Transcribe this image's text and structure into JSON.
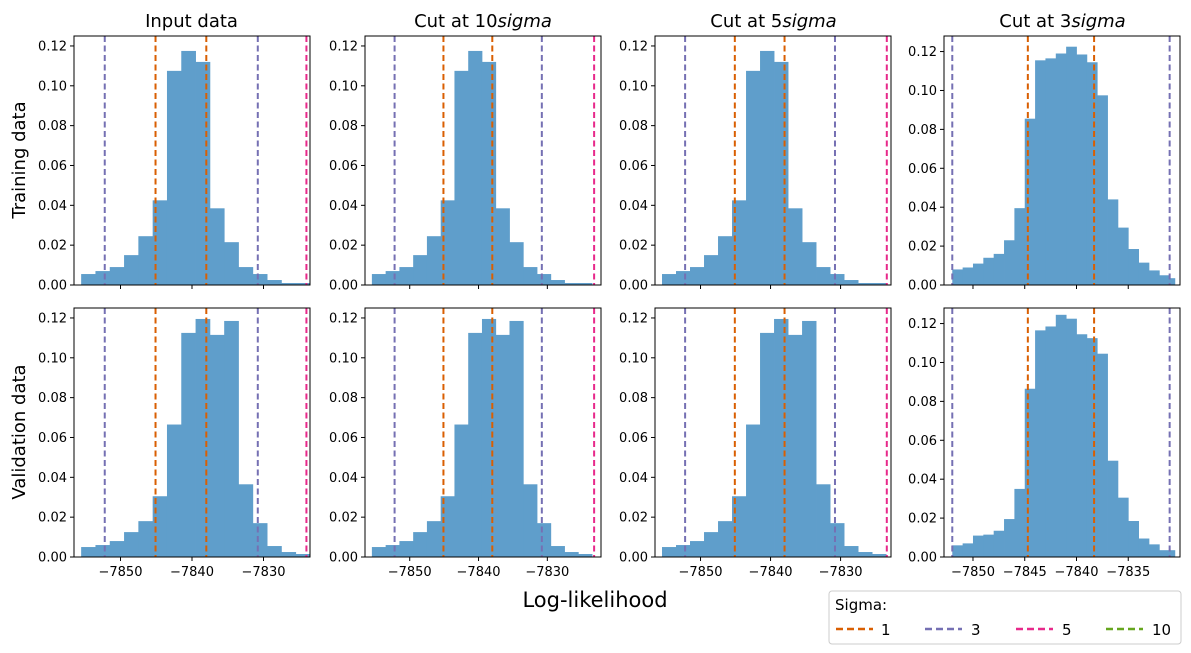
{
  "figure": {
    "xlabel": "Log-likelihood",
    "row_labels": [
      "Training data",
      "Validation data"
    ],
    "column_titles": [
      {
        "prefix": "Input data",
        "italic": ""
      },
      {
        "prefix": "Cut at 10",
        "italic": "sigma"
      },
      {
        "prefix": "Cut at 5",
        "italic": "sigma"
      },
      {
        "prefix": "Cut at 3",
        "italic": "sigma"
      }
    ],
    "legend": {
      "title": "Sigma:",
      "placement": "bottom-right",
      "entries": [
        {
          "label": "1",
          "color": "#d95f02"
        },
        {
          "label": "3",
          "color": "#7570b3"
        },
        {
          "label": "5",
          "color": "#e7298a"
        },
        {
          "label": "10",
          "color": "#66a61e"
        }
      ]
    },
    "bar_color": "#5f9ecb"
  },
  "chart_data": [
    {
      "type": "bar",
      "title": "Input data",
      "row": "Training data",
      "ylabel": "Training data",
      "xlim": [
        -7856.5,
        -7823.5
      ],
      "ylim": [
        0,
        0.125
      ],
      "xticks": [
        -7850,
        -7840,
        -7830
      ],
      "xtick_labels": [
        "",
        "",
        ""
      ],
      "yticks": [
        0,
        0.02,
        0.04,
        0.06,
        0.08,
        0.1,
        0.12
      ],
      "ytick_labels": [
        "0.00",
        "0.02",
        "0.04",
        "0.06",
        "0.08",
        "0.10",
        "0.12"
      ],
      "bin_edges": [
        -7855.5,
        -7853.5,
        -7851.5,
        -7849.5,
        -7847.5,
        -7845.5,
        -7843.5,
        -7841.5,
        -7839.5,
        -7837.5,
        -7835.5,
        -7833.5,
        -7831.5,
        -7829.5,
        -7827.5,
        -7825.5,
        -7823.5
      ],
      "values": [
        0.0055,
        0.007,
        0.009,
        0.015,
        0.0245,
        0.0425,
        0.1075,
        0.1175,
        0.112,
        0.0385,
        0.0215,
        0.009,
        0.0055,
        0.0025,
        0.001,
        0.001
      ],
      "sigma_lines": [
        {
          "sigma": 1,
          "x": [
            -7845.1,
            -7838.0
          ]
        },
        {
          "sigma": 3,
          "x": [
            -7852.2,
            -7830.8
          ]
        },
        {
          "sigma": 5,
          "x": [
            -7824.0
          ]
        }
      ]
    },
    {
      "type": "bar",
      "title": "Cut at 10sigma",
      "row": "Training data",
      "xlim": [
        -7856.5,
        -7822.2
      ],
      "ylim": [
        0,
        0.125
      ],
      "xticks": [
        -7850,
        -7840,
        -7830
      ],
      "xtick_labels": [
        "",
        "",
        ""
      ],
      "yticks": [
        0,
        0.02,
        0.04,
        0.06,
        0.08,
        0.1,
        0.12
      ],
      "ytick_labels": [
        "0.00",
        "0.02",
        "0.04",
        "0.06",
        "0.08",
        "0.10",
        "0.12"
      ],
      "bin_edges": [
        -7855.5,
        -7853.5,
        -7851.5,
        -7849.5,
        -7847.5,
        -7845.5,
        -7843.5,
        -7841.5,
        -7839.5,
        -7837.5,
        -7835.5,
        -7833.5,
        -7831.5,
        -7829.5,
        -7827.5,
        -7825.5,
        -7823.5
      ],
      "values": [
        0.0055,
        0.007,
        0.009,
        0.015,
        0.0245,
        0.0425,
        0.1075,
        0.1175,
        0.112,
        0.0385,
        0.0215,
        0.009,
        0.0055,
        0.0025,
        0.001,
        0.001
      ],
      "sigma_lines": [
        {
          "sigma": 1,
          "x": [
            -7845.1,
            -7838.0
          ]
        },
        {
          "sigma": 3,
          "x": [
            -7852.2,
            -7830.8
          ]
        },
        {
          "sigma": 5,
          "x": [
            -7823.2
          ]
        }
      ]
    },
    {
      "type": "bar",
      "title": "Cut at 5sigma",
      "row": "Training data",
      "xlim": [
        -7856.5,
        -7822.8
      ],
      "ylim": [
        0,
        0.125
      ],
      "xticks": [
        -7850,
        -7840,
        -7830
      ],
      "xtick_labels": [
        "",
        "",
        ""
      ],
      "yticks": [
        0,
        0.02,
        0.04,
        0.06,
        0.08,
        0.1,
        0.12
      ],
      "ytick_labels": [
        "0.00",
        "0.02",
        "0.04",
        "0.06",
        "0.08",
        "0.10",
        "0.12"
      ],
      "bin_edges": [
        -7855.5,
        -7853.5,
        -7851.5,
        -7849.5,
        -7847.5,
        -7845.5,
        -7843.5,
        -7841.5,
        -7839.5,
        -7837.5,
        -7835.5,
        -7833.5,
        -7831.5,
        -7829.5,
        -7827.5,
        -7825.5,
        -7823.5
      ],
      "values": [
        0.0055,
        0.007,
        0.009,
        0.015,
        0.0245,
        0.0425,
        0.1075,
        0.1175,
        0.112,
        0.0385,
        0.0215,
        0.009,
        0.0055,
        0.0025,
        0.001,
        0.001
      ],
      "sigma_lines": [
        {
          "sigma": 1,
          "x": [
            -7845.1,
            -7838.0
          ]
        },
        {
          "sigma": 3,
          "x": [
            -7852.2,
            -7830.8
          ]
        },
        {
          "sigma": 5,
          "x": [
            -7823.4
          ]
        }
      ]
    },
    {
      "type": "bar",
      "title": "Cut at 3sigma",
      "row": "Training data",
      "xlim": [
        -7852.8,
        -7830.0
      ],
      "ylim": [
        0,
        0.128
      ],
      "xticks": [
        -7850,
        -7845,
        -7840,
        -7835
      ],
      "xtick_labels": [
        "",
        "",
        "",
        ""
      ],
      "yticks": [
        0,
        0.02,
        0.04,
        0.06,
        0.08,
        0.1,
        0.12
      ],
      "ytick_labels": [
        "0.00",
        "0.02",
        "0.04",
        "0.06",
        "0.08",
        "0.10",
        "0.12"
      ],
      "bin_edges": [
        -7852.0,
        -7851.0,
        -7850.0,
        -7849.0,
        -7848.0,
        -7847.0,
        -7846.0,
        -7845.0,
        -7844.0,
        -7843.0,
        -7842.0,
        -7841.0,
        -7840.0,
        -7839.0,
        -7838.0,
        -7837.0,
        -7836.0,
        -7835.0,
        -7834.0,
        -7833.0,
        -7832.0,
        -7831.0,
        -7830.5
      ],
      "values": [
        0.008,
        0.009,
        0.011,
        0.014,
        0.016,
        0.023,
        0.0395,
        0.0855,
        0.1155,
        0.1165,
        0.119,
        0.1225,
        0.1185,
        0.1145,
        0.0975,
        0.044,
        0.0295,
        0.0185,
        0.0115,
        0.0075,
        0.005,
        0.0035
      ],
      "sigma_lines": [
        {
          "sigma": 1,
          "x": [
            -7844.7,
            -7838.3
          ]
        },
        {
          "sigma": 3,
          "x": [
            -7852.0,
            -7831.0
          ]
        }
      ]
    },
    {
      "type": "bar",
      "title": "Input data",
      "row": "Validation data",
      "ylabel": "Validation data",
      "xlim": [
        -7856.5,
        -7823.5
      ],
      "ylim": [
        0,
        0.125
      ],
      "xticks": [
        -7850,
        -7840,
        -7830
      ],
      "xtick_labels": [
        "−7850",
        "−7840",
        "−7830"
      ],
      "yticks": [
        0,
        0.02,
        0.04,
        0.06,
        0.08,
        0.1,
        0.12
      ],
      "ytick_labels": [
        "0.00",
        "0.02",
        "0.04",
        "0.06",
        "0.08",
        "0.10",
        "0.12"
      ],
      "bin_edges": [
        -7855.5,
        -7853.5,
        -7851.5,
        -7849.5,
        -7847.5,
        -7845.5,
        -7843.5,
        -7841.5,
        -7839.5,
        -7837.5,
        -7835.5,
        -7833.5,
        -7831.5,
        -7829.5,
        -7827.5,
        -7825.5,
        -7823.5
      ],
      "values": [
        0.005,
        0.006,
        0.008,
        0.0125,
        0.018,
        0.0305,
        0.0665,
        0.1125,
        0.1195,
        0.1115,
        0.1185,
        0.0365,
        0.017,
        0.0055,
        0.0025,
        0.0015
      ],
      "sigma_lines": [
        {
          "sigma": 1,
          "x": [
            -7845.1,
            -7838.0
          ]
        },
        {
          "sigma": 3,
          "x": [
            -7852.2,
            -7830.8
          ]
        },
        {
          "sigma": 5,
          "x": [
            -7824.0
          ]
        }
      ]
    },
    {
      "type": "bar",
      "title": "Cut at 10sigma",
      "row": "Validation data",
      "xlim": [
        -7856.5,
        -7822.2
      ],
      "ylim": [
        0,
        0.125
      ],
      "xticks": [
        -7850,
        -7840,
        -7830
      ],
      "xtick_labels": [
        "−7850",
        "−7840",
        "−7830"
      ],
      "yticks": [
        0,
        0.02,
        0.04,
        0.06,
        0.08,
        0.1,
        0.12
      ],
      "ytick_labels": [
        "0.00",
        "0.02",
        "0.04",
        "0.06",
        "0.08",
        "0.10",
        "0.12"
      ],
      "bin_edges": [
        -7855.5,
        -7853.5,
        -7851.5,
        -7849.5,
        -7847.5,
        -7845.5,
        -7843.5,
        -7841.5,
        -7839.5,
        -7837.5,
        -7835.5,
        -7833.5,
        -7831.5,
        -7829.5,
        -7827.5,
        -7825.5,
        -7823.5
      ],
      "values": [
        0.005,
        0.006,
        0.008,
        0.0125,
        0.018,
        0.0305,
        0.0665,
        0.1125,
        0.1195,
        0.1115,
        0.1185,
        0.0365,
        0.017,
        0.0055,
        0.0025,
        0.0015
      ],
      "sigma_lines": [
        {
          "sigma": 1,
          "x": [
            -7845.1,
            -7838.0
          ]
        },
        {
          "sigma": 3,
          "x": [
            -7852.2,
            -7830.8
          ]
        },
        {
          "sigma": 5,
          "x": [
            -7823.2
          ]
        }
      ]
    },
    {
      "type": "bar",
      "title": "Cut at 5sigma",
      "row": "Validation data",
      "xlim": [
        -7856.5,
        -7822.8
      ],
      "ylim": [
        0,
        0.125
      ],
      "xticks": [
        -7850,
        -7840,
        -7830
      ],
      "xtick_labels": [
        "−7850",
        "−7840",
        "−7830"
      ],
      "yticks": [
        0,
        0.02,
        0.04,
        0.06,
        0.08,
        0.1,
        0.12
      ],
      "ytick_labels": [
        "0.00",
        "0.02",
        "0.04",
        "0.06",
        "0.08",
        "0.10",
        "0.12"
      ],
      "bin_edges": [
        -7855.5,
        -7853.5,
        -7851.5,
        -7849.5,
        -7847.5,
        -7845.5,
        -7843.5,
        -7841.5,
        -7839.5,
        -7837.5,
        -7835.5,
        -7833.5,
        -7831.5,
        -7829.5,
        -7827.5,
        -7825.5,
        -7823.5
      ],
      "values": [
        0.005,
        0.006,
        0.008,
        0.0125,
        0.018,
        0.0305,
        0.0665,
        0.1125,
        0.1195,
        0.1115,
        0.1185,
        0.0365,
        0.017,
        0.0055,
        0.0025,
        0.0015
      ],
      "sigma_lines": [
        {
          "sigma": 1,
          "x": [
            -7845.1,
            -7838.0
          ]
        },
        {
          "sigma": 3,
          "x": [
            -7852.2,
            -7830.8
          ]
        },
        {
          "sigma": 5,
          "x": [
            -7823.4
          ]
        }
      ]
    },
    {
      "type": "bar",
      "title": "Cut at 3sigma",
      "row": "Validation data",
      "xlim": [
        -7852.8,
        -7830.0
      ],
      "ylim": [
        0,
        0.128
      ],
      "xticks": [
        -7850,
        -7845,
        -7840,
        -7835
      ],
      "xtick_labels": [
        "−7850",
        "−7845",
        "−7840",
        "−7835"
      ],
      "yticks": [
        0,
        0.02,
        0.04,
        0.06,
        0.08,
        0.1,
        0.12
      ],
      "ytick_labels": [
        "0.00",
        "0.02",
        "0.04",
        "0.06",
        "0.08",
        "0.10",
        "0.12"
      ],
      "bin_edges": [
        -7852.0,
        -7851.0,
        -7850.0,
        -7849.0,
        -7848.0,
        -7847.0,
        -7846.0,
        -7845.0,
        -7844.0,
        -7843.0,
        -7842.0,
        -7841.0,
        -7840.0,
        -7839.0,
        -7838.0,
        -7837.0,
        -7836.0,
        -7835.0,
        -7834.0,
        -7833.0,
        -7832.0,
        -7831.0,
        -7830.5
      ],
      "values": [
        0.006,
        0.007,
        0.011,
        0.0115,
        0.0135,
        0.0195,
        0.035,
        0.0865,
        0.1165,
        0.1185,
        0.1245,
        0.1225,
        0.1145,
        0.1125,
        0.1045,
        0.0495,
        0.0305,
        0.0185,
        0.0095,
        0.0065,
        0.0035,
        0.0035
      ],
      "sigma_lines": [
        {
          "sigma": 1,
          "x": [
            -7844.7,
            -7838.3
          ]
        },
        {
          "sigma": 3,
          "x": [
            -7852.0,
            -7831.0
          ]
        }
      ]
    }
  ]
}
